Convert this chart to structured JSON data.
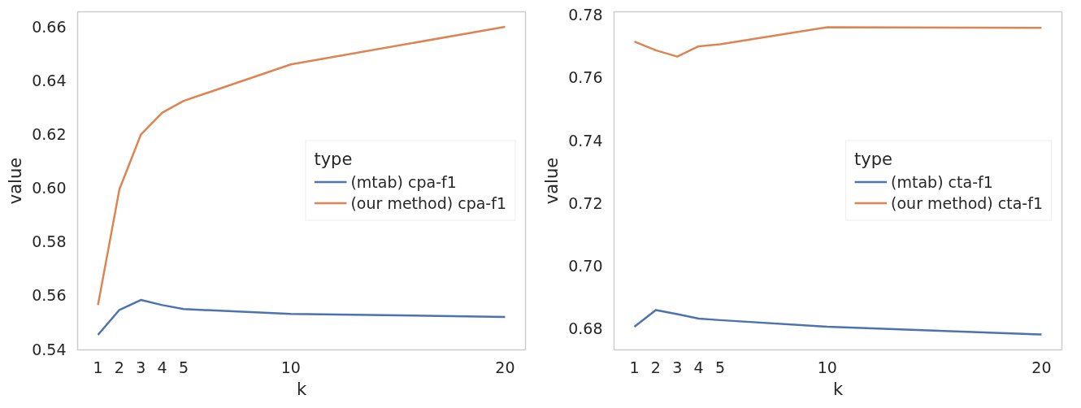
{
  "chart_data": [
    {
      "type": "line",
      "xlabel": "k",
      "ylabel": "value",
      "legend_title": "type",
      "legend": "right",
      "grid": false,
      "xlim": [
        0.05,
        20.95
      ],
      "xticks": [
        1,
        2,
        3,
        4,
        5,
        10,
        20
      ],
      "ylim": [
        0.5397,
        0.6657
      ],
      "yticks": [
        {
          "value": 0.54,
          "label": "0.54"
        },
        {
          "value": 0.56,
          "label": "0.56"
        },
        {
          "value": 0.58,
          "label": "0.58"
        },
        {
          "value": 0.6,
          "label": "0.60"
        },
        {
          "value": 0.62,
          "label": "0.62"
        },
        {
          "value": 0.64,
          "label": "0.64"
        },
        {
          "value": 0.66,
          "label": "0.66"
        }
      ],
      "x": [
        1,
        2,
        3,
        4,
        5,
        10,
        20
      ],
      "series": [
        {
          "name": "(mtab) cpa-f1",
          "color": "#4c72b0",
          "values": [
            0.5453,
            0.5546,
            0.5583,
            0.5564,
            0.5549,
            0.5531,
            0.552
          ]
        },
        {
          "name": "(our method) cpa-f1",
          "color": "#dd8452",
          "values": [
            0.5564,
            0.5995,
            0.6199,
            0.6281,
            0.6325,
            0.6461,
            0.6601
          ]
        }
      ]
    },
    {
      "type": "line",
      "xlabel": "k",
      "ylabel": "value",
      "legend_title": "type",
      "legend": "right",
      "grid": false,
      "xlim": [
        0.05,
        20.95
      ],
      "xticks": [
        1,
        2,
        3,
        4,
        5,
        10,
        20
      ],
      "ylim": [
        0.6731,
        0.781
      ],
      "yticks": [
        {
          "value": 0.68,
          "label": "0.68"
        },
        {
          "value": 0.7,
          "label": "0.70"
        },
        {
          "value": 0.72,
          "label": "0.72"
        },
        {
          "value": 0.74,
          "label": "0.74"
        },
        {
          "value": 0.76,
          "label": "0.76"
        },
        {
          "value": 0.78,
          "label": "0.78"
        }
      ],
      "x": [
        1,
        2,
        3,
        4,
        5,
        10,
        20
      ],
      "series": [
        {
          "name": "(mtab) cta-f1",
          "color": "#4c72b0",
          "values": [
            0.6805,
            0.6858,
            0.6845,
            0.6831,
            0.6826,
            0.6805,
            0.678
          ]
        },
        {
          "name": "(our method) cta-f1",
          "color": "#dd8452",
          "values": [
            0.7715,
            0.7687,
            0.7667,
            0.77,
            0.7706,
            0.7761,
            0.7759
          ]
        }
      ]
    }
  ]
}
